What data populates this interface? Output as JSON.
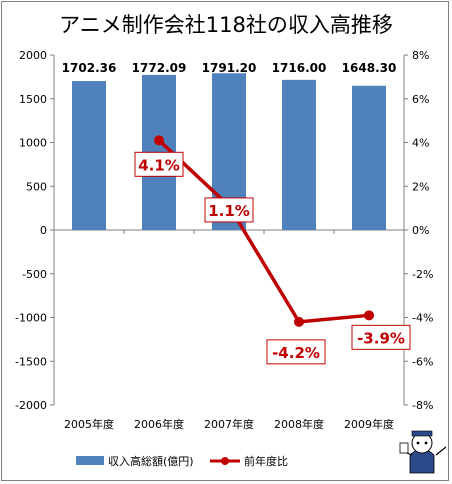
{
  "chart_data": {
    "type": "bar",
    "title": "アニメ制作会社118社の収入高推移",
    "categories": [
      "2005年度",
      "2006年度",
      "2007年度",
      "2008年度",
      "2009年度"
    ],
    "series": [
      {
        "name": "収入高総額(億円)",
        "type": "bar",
        "axis": "left",
        "values": [
          1702.36,
          1772.09,
          1791.2,
          1716.0,
          1648.3
        ],
        "labels": [
          "1702.36",
          "1772.09",
          "1791.20",
          "1716.00",
          "1648.30"
        ],
        "color": "#4f81bd"
      },
      {
        "name": "前年度比",
        "type": "line",
        "axis": "right",
        "values": [
          null,
          4.1,
          1.1,
          -4.2,
          -3.9
        ],
        "labels": [
          "",
          "4.1%",
          "1.1%",
          "-4.2%",
          "-3.9%"
        ],
        "color": "#c00000"
      }
    ],
    "y_left": {
      "min": -2000,
      "max": 2000,
      "step": 500,
      "ticks": [
        "-2000",
        "-1500",
        "-1000",
        "-500",
        "0",
        "500",
        "1000",
        "1500",
        "2000"
      ]
    },
    "y_right": {
      "min": -8,
      "max": 8,
      "step": 2,
      "ticks": [
        "-8%",
        "-6%",
        "-4%",
        "-2%",
        "0%",
        "2%",
        "4%",
        "6%",
        "8%"
      ]
    },
    "grid": false,
    "legend_position": "bottom-left"
  }
}
